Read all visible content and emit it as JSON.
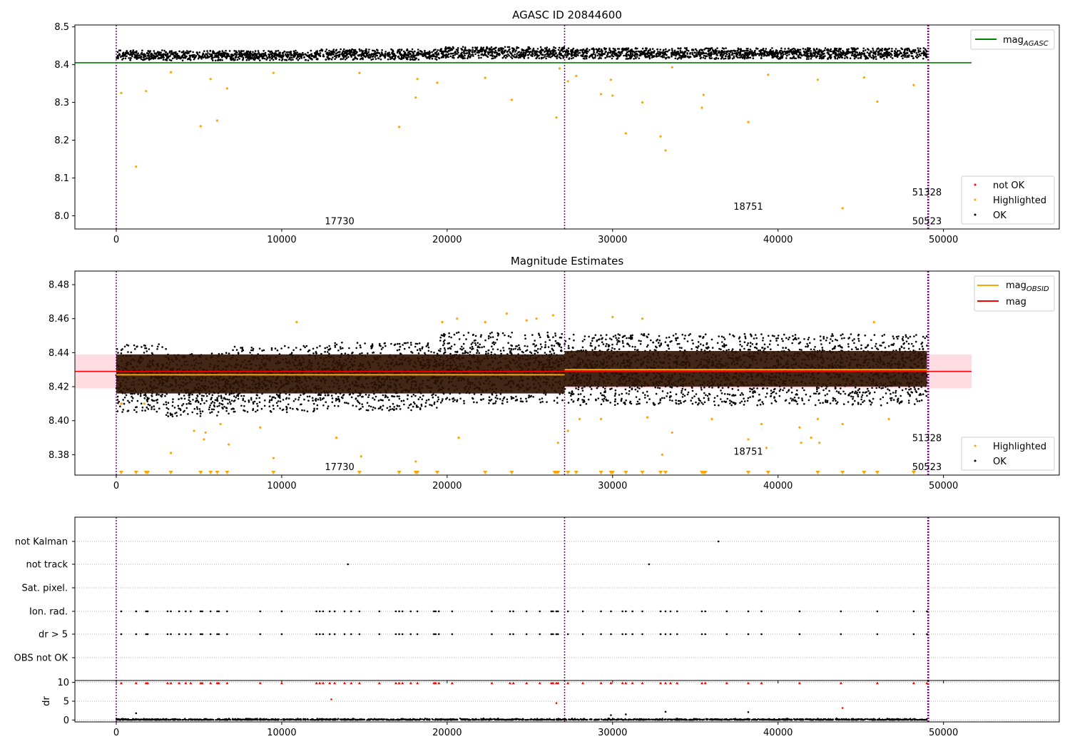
{
  "figure": {
    "panel1_title": "AGASC ID 20844600",
    "panel2_title": "Magnitude Estimates"
  },
  "chart_data": [
    {
      "type": "scatter",
      "title": "AGASC ID 20844600",
      "xlim": [
        -2500,
        57000
      ],
      "ylim": [
        7.965,
        8.505
      ],
      "x_ticks": [
        0,
        10000,
        20000,
        30000,
        40000,
        50000
      ],
      "y_ticks": [
        8.0,
        8.1,
        8.2,
        8.3,
        8.4,
        8.5
      ],
      "obs_lines_x": [
        0,
        27100,
        49050,
        49100
      ],
      "obs_labels": [
        {
          "text": "17730",
          "x": 13500,
          "y": 7.987
        },
        {
          "text": "18751",
          "x": 38200,
          "y": 8.025
        },
        {
          "text": "51328",
          "x": 49000,
          "y": 8.063
        },
        {
          "text": "50523",
          "x": 49000,
          "y": 7.987
        }
      ],
      "ok_band": [
        {
          "x0": 0,
          "x1": 3000,
          "lo": 8.412,
          "hi": 8.438
        },
        {
          "x0": 3000,
          "x1": 12000,
          "lo": 8.411,
          "hi": 8.437
        },
        {
          "x0": 12000,
          "x1": 19500,
          "lo": 8.413,
          "hi": 8.441
        },
        {
          "x0": 19500,
          "x1": 27100,
          "lo": 8.416,
          "hi": 8.447
        },
        {
          "x0": 27100,
          "x1": 49000,
          "lo": 8.415,
          "hi": 8.444
        }
      ],
      "mag_agasc": {
        "value": 8.405,
        "x0": -2500,
        "x1": 51700
      },
      "highlighted_points": [
        [
          300,
          8.325
        ],
        [
          1200,
          8.13
        ],
        [
          1800,
          8.33
        ],
        [
          3300,
          8.38
        ],
        [
          5100,
          8.237
        ],
        [
          5700,
          8.362
        ],
        [
          6100,
          8.252
        ],
        [
          6700,
          8.337
        ],
        [
          9500,
          8.378
        ],
        [
          14700,
          8.378
        ],
        [
          17100,
          8.235
        ],
        [
          18100,
          8.313
        ],
        [
          18200,
          8.362
        ],
        [
          19400,
          8.352
        ],
        [
          22300,
          8.365
        ],
        [
          23900,
          8.307
        ],
        [
          26600,
          8.26
        ],
        [
          26800,
          8.39
        ],
        [
          27300,
          8.356
        ],
        [
          27800,
          8.37
        ],
        [
          29300,
          8.322
        ],
        [
          29900,
          8.36
        ],
        [
          30000,
          8.318
        ],
        [
          30800,
          8.218
        ],
        [
          31800,
          8.3
        ],
        [
          32900,
          8.21
        ],
        [
          33200,
          8.173
        ],
        [
          33600,
          8.393
        ],
        [
          35400,
          8.286
        ],
        [
          35500,
          8.32
        ],
        [
          38200,
          8.248
        ],
        [
          39400,
          8.373
        ],
        [
          42400,
          8.36
        ],
        [
          43900,
          8.02
        ],
        [
          45200,
          8.366
        ],
        [
          46000,
          8.302
        ],
        [
          48200,
          8.346
        ]
      ],
      "legend": [
        "not OK",
        "Highlighted",
        "OK"
      ],
      "legend_line": "mag_AGASC"
    },
    {
      "type": "scatter",
      "title": "Magnitude Estimates",
      "xlim": [
        -2500,
        57000
      ],
      "ylim": [
        8.368,
        8.488
      ],
      "x_ticks": [
        0,
        10000,
        20000,
        30000,
        40000,
        50000
      ],
      "y_ticks": [
        8.38,
        8.4,
        8.42,
        8.44,
        8.46,
        8.48
      ],
      "obs_lines_x": [
        0,
        27100,
        49050,
        49100
      ],
      "obs_labels": [
        {
          "text": "17730",
          "x": 13500,
          "y": 8.373
        },
        {
          "text": "18751",
          "x": 38200,
          "y": 8.382
        },
        {
          "text": "51328",
          "x": 49000,
          "y": 8.39
        },
        {
          "text": "50523",
          "x": 49000,
          "y": 8.373
        }
      ],
      "ok_band": [
        {
          "x0": 0,
          "x1": 3000,
          "lo": 8.405,
          "hi": 8.445
        },
        {
          "x0": 3000,
          "x1": 7000,
          "lo": 8.402,
          "hi": 8.44
        },
        {
          "x0": 7000,
          "x1": 12000,
          "lo": 8.405,
          "hi": 8.444
        },
        {
          "x0": 12000,
          "x1": 19500,
          "lo": 8.406,
          "hi": 8.446
        },
        {
          "x0": 19500,
          "x1": 27100,
          "lo": 8.41,
          "hi": 8.452
        },
        {
          "x0": 27100,
          "x1": 49000,
          "lo": 8.409,
          "hi": 8.451
        }
      ],
      "dense_core": [
        {
          "x0": 0,
          "x1": 27100,
          "lo": 8.416,
          "hi": 8.439
        },
        {
          "x0": 27100,
          "x1": 49000,
          "lo": 8.42,
          "hi": 8.441
        }
      ],
      "mag_band": {
        "lo": 8.419,
        "hi": 8.439,
        "x0": -2500,
        "x1": 51700
      },
      "mag": {
        "value": 8.429,
        "x0": -2500,
        "x1": 51700
      },
      "mag_obsid": [
        {
          "x0": 0,
          "x1": 27100,
          "value": 8.427
        },
        {
          "x0": 27100,
          "x1": 49000,
          "value": 8.43
        }
      ],
      "highlighted_points": [
        [
          300,
          8.41
        ],
        [
          1700,
          8.41
        ],
        [
          3300,
          8.381
        ],
        [
          4700,
          8.394
        ],
        [
          5300,
          8.389
        ],
        [
          5400,
          8.393
        ],
        [
          6300,
          8.398
        ],
        [
          6800,
          8.386
        ],
        [
          8700,
          8.396
        ],
        [
          9500,
          8.378
        ],
        [
          10900,
          8.458
        ],
        [
          13300,
          8.39
        ],
        [
          14800,
          8.379
        ],
        [
          18100,
          8.376
        ],
        [
          19700,
          8.458
        ],
        [
          20600,
          8.46
        ],
        [
          20700,
          8.39
        ],
        [
          22300,
          8.458
        ],
        [
          23600,
          8.463
        ],
        [
          24800,
          8.459
        ],
        [
          25400,
          8.46
        ],
        [
          26400,
          8.462
        ],
        [
          26700,
          8.387
        ],
        [
          27300,
          8.394
        ],
        [
          28000,
          8.401
        ],
        [
          29300,
          8.401
        ],
        [
          30000,
          8.461
        ],
        [
          31800,
          8.46
        ],
        [
          32100,
          8.402
        ],
        [
          33000,
          8.38
        ],
        [
          33600,
          8.393
        ],
        [
          36000,
          8.401
        ],
        [
          38200,
          8.389
        ],
        [
          39000,
          8.398
        ],
        [
          39300,
          8.384
        ],
        [
          41300,
          8.396
        ],
        [
          41400,
          8.387
        ],
        [
          42000,
          8.39
        ],
        [
          42400,
          8.401
        ],
        [
          42500,
          8.387
        ],
        [
          43900,
          8.398
        ],
        [
          45800,
          8.458
        ],
        [
          46700,
          8.401
        ]
      ],
      "clipped_x": [
        300,
        1200,
        1800,
        1900,
        3300,
        5100,
        5700,
        6100,
        6700,
        9500,
        14700,
        17100,
        18100,
        18200,
        19400,
        22300,
        23900,
        26500,
        26600,
        26700,
        27300,
        27800,
        29300,
        29900,
        30000,
        30800,
        31800,
        32900,
        33200,
        35400,
        35500,
        35600,
        38200,
        39400,
        42400,
        43900,
        45200,
        46000,
        48200
      ],
      "legend": [
        "mag_OBSID",
        "mag",
        "Highlighted",
        "OK"
      ]
    },
    {
      "type": "scatter",
      "xlim": [
        -2500,
        57000
      ],
      "flag_rows": [
        "not Kalman",
        "not track",
        "Sat. pixel.",
        "Ion. rad.",
        "dr > 5",
        "OBS not OK"
      ],
      "obs_lines_x": [
        0,
        27100,
        49050,
        49100
      ],
      "flag_points": {
        "not Kalman": [
          36400
        ],
        "not track": [
          14000,
          32200
        ],
        "Sat. pixel.": [],
        "Ion. rad.": [
          300,
          1200,
          1800,
          1900,
          3100,
          3300,
          3800,
          4200,
          4500,
          5100,
          5200,
          5700,
          6100,
          6200,
          6700,
          8700,
          10000,
          12100,
          12300,
          12500,
          12900,
          13200,
          13800,
          14200,
          14700,
          15900,
          16900,
          17100,
          17300,
          17800,
          18200,
          19200,
          19300,
          19500,
          20300,
          22700,
          23800,
          24000,
          24800,
          25600,
          26300,
          26400,
          26600,
          26700,
          27300,
          28200,
          29300,
          29900,
          30600,
          30800,
          31200,
          31800,
          32900,
          33200,
          33500,
          33900,
          35400,
          35600,
          36900,
          38200,
          39000,
          41300,
          43800,
          46000,
          48200,
          49000
        ],
        "dr > 5": [
          300,
          1200,
          1800,
          1900,
          3100,
          3300,
          3800,
          4200,
          4500,
          5100,
          5200,
          5700,
          6100,
          6200,
          6700,
          8700,
          10000,
          12100,
          12300,
          12500,
          12900,
          13200,
          13800,
          14200,
          14700,
          15900,
          16900,
          17100,
          17300,
          17800,
          18200,
          19200,
          19300,
          19500,
          20300,
          22700,
          23800,
          24000,
          24800,
          25600,
          26300,
          26400,
          26600,
          26700,
          27300,
          28200,
          29300,
          29900,
          30600,
          30800,
          31200,
          31800,
          32900,
          33200,
          33500,
          33900,
          35400,
          35600,
          36900,
          38200,
          39000,
          41300,
          43800,
          46000,
          48200,
          49000
        ],
        "OBS not OK": []
      }
    },
    {
      "type": "scatter",
      "xlim": [
        -2500,
        57000
      ],
      "ylim": [
        -0.5,
        10.5
      ],
      "y_ticks": [
        0,
        5,
        10
      ],
      "ylabel": "dr",
      "x_ticks": [
        0,
        10000,
        20000,
        30000,
        40000,
        50000
      ],
      "obs_lines_x": [
        0,
        27100,
        49050,
        49100
      ],
      "clipped_x": [
        300,
        1200,
        1800,
        1900,
        3100,
        3300,
        3800,
        4200,
        4500,
        5100,
        5200,
        5700,
        6100,
        6200,
        6700,
        8700,
        10000,
        12100,
        12300,
        12500,
        12900,
        13200,
        13800,
        14200,
        14700,
        15900,
        16900,
        17100,
        17300,
        17800,
        18200,
        19200,
        19300,
        19500,
        20300,
        22700,
        23800,
        24000,
        24800,
        25600,
        26300,
        26400,
        26600,
        26700,
        27300,
        28200,
        29300,
        29900,
        30600,
        30800,
        31200,
        31800,
        32900,
        33200,
        33500,
        33900,
        35400,
        35600,
        36900,
        38200,
        39000,
        41300,
        43800,
        46000,
        48200,
        49000
      ],
      "scattered_points": [
        [
          1200,
          1.8
        ],
        [
          13000,
          5.5
        ],
        [
          26600,
          4.5
        ],
        [
          29900,
          1.3
        ],
        [
          30800,
          1.5
        ],
        [
          33200,
          2.2
        ],
        [
          38200,
          2.1
        ],
        [
          43900,
          3.2
        ]
      ],
      "red_scattered": [
        [
          13000,
          5.5
        ],
        [
          26600,
          4.5
        ],
        [
          43900,
          3.2
        ]
      ]
    }
  ],
  "legends": {
    "p1_line": "mag",
    "p1_line_sub": "AGASC",
    "p1_pts": [
      "not OK",
      "Highlighted",
      "OK"
    ],
    "p2_line1": "mag",
    "p2_line1_sub": "OBSID",
    "p2_line2": "mag",
    "p2_pts": [
      "Highlighted",
      "OK"
    ]
  },
  "colors": {
    "ok": "#000000",
    "highlighted": "#ffa500",
    "not_ok": "#ff0000",
    "mag_agasc": "#008000",
    "mag": "#ff0000",
    "mag_band": "#ffc0cb",
    "mag_obsid": "#ffa500",
    "obs_lines": "#800080",
    "dense_core": "#2e1200"
  }
}
